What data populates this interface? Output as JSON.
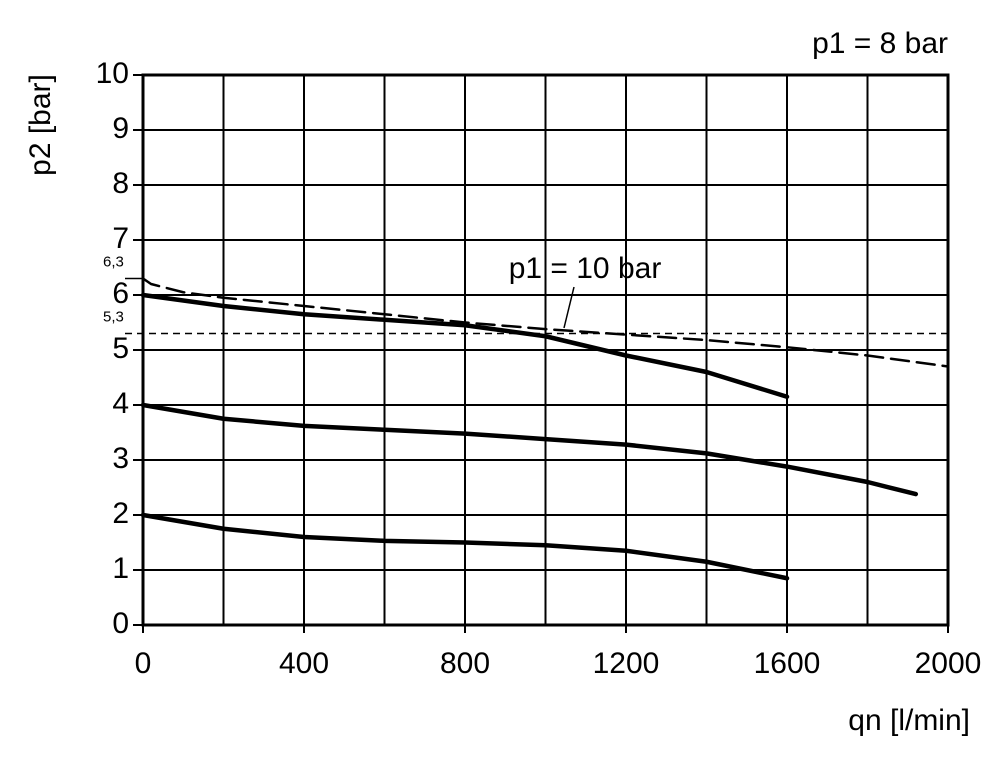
{
  "chart_data": {
    "type": "line",
    "x_label": "qn [l/min]",
    "y_label": "p2 [bar]",
    "annotations": [
      "p1 = 8 bar",
      "p1 = 10 bar"
    ],
    "xlim": [
      0,
      2000
    ],
    "ylim": [
      0,
      10
    ],
    "xticks": [
      0,
      400,
      800,
      1200,
      1600,
      2000
    ],
    "xminor_ticks": [
      200,
      600,
      1000,
      1400,
      1800
    ],
    "yticks": [
      0,
      1,
      2,
      3,
      4,
      5,
      6,
      7,
      8,
      9,
      10
    ],
    "grid": true,
    "y_markers": [
      {
        "value": 6.3,
        "label": "6,3",
        "line": false
      },
      {
        "value": 5.3,
        "label": "5,3",
        "line": true
      }
    ],
    "series": [
      {
        "color": "#000000",
        "style": "dashed",
        "x": [
          0,
          20,
          100,
          200,
          400,
          600,
          800,
          1000,
          1200,
          1400,
          1600,
          1800,
          2000
        ],
        "values": [
          6.3,
          6.2,
          6.05,
          5.95,
          5.8,
          5.65,
          5.5,
          5.38,
          5.28,
          5.18,
          5.05,
          4.9,
          4.7
        ]
      },
      {
        "color": "#000000",
        "style": "solid",
        "x": [
          0,
          200,
          400,
          600,
          800,
          1000,
          1200,
          1400,
          1600
        ],
        "values": [
          6.0,
          5.8,
          5.65,
          5.55,
          5.45,
          5.25,
          4.9,
          4.6,
          4.15
        ]
      },
      {
        "color": "#000000",
        "style": "solid",
        "x": [
          0,
          200,
          400,
          600,
          800,
          1000,
          1200,
          1400,
          1600,
          1800,
          1920
        ],
        "values": [
          4.0,
          3.75,
          3.62,
          3.55,
          3.48,
          3.38,
          3.28,
          3.12,
          2.88,
          2.6,
          2.38
        ]
      },
      {
        "color": "#000000",
        "style": "solid",
        "x": [
          0,
          200,
          400,
          600,
          800,
          1000,
          1200,
          1400,
          1600
        ],
        "values": [
          2.0,
          1.75,
          1.6,
          1.53,
          1.5,
          1.45,
          1.35,
          1.15,
          0.85
        ]
      }
    ]
  }
}
